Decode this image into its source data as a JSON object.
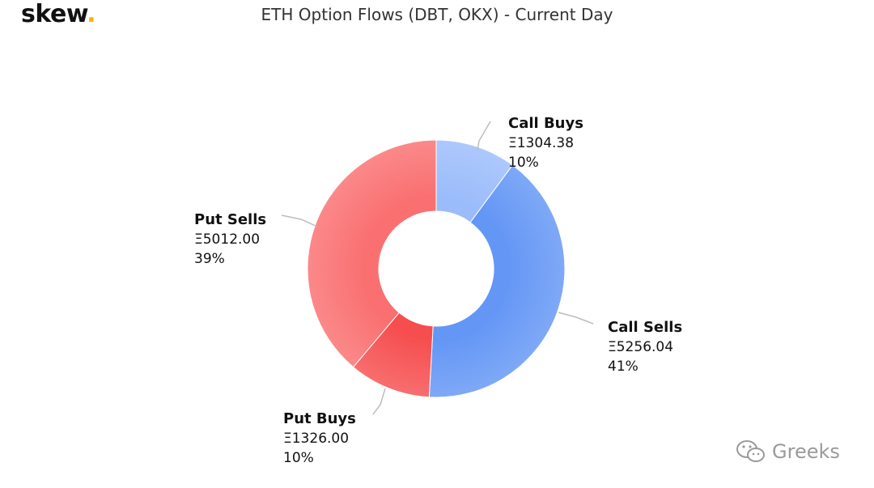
{
  "header": {
    "brand": "skew",
    "brand_dot": ".",
    "title": "ETH Option Flows (DBT, OKX) - Current Day"
  },
  "watermark": {
    "text": "Greeks",
    "icon": "wechat-icon"
  },
  "colors": {
    "call_buys": "#9bbcfb",
    "call_sells": "#6396f5",
    "put_buys": "#f64e4f",
    "put_sells": "#fa6f70"
  },
  "chart_data": {
    "type": "pie",
    "donut": true,
    "title": "ETH Option Flows (DBT, OKX) - Current Day",
    "currency_symbol": "Ξ",
    "slices": [
      {
        "name": "Call Buys",
        "value": 1304.38,
        "value_label": "Ξ1304.38",
        "percent_label": "10%",
        "color": "#9bbcfb"
      },
      {
        "name": "Call Sells",
        "value": 5256.04,
        "value_label": "Ξ5256.04",
        "percent_label": "41%",
        "color": "#6396f5"
      },
      {
        "name": "Put Buys",
        "value": 1326.0,
        "value_label": "Ξ1326.00",
        "percent_label": "10%",
        "color": "#f64e4f"
      },
      {
        "name": "Put Sells",
        "value": 5012.0,
        "value_label": "Ξ5012.00",
        "percent_label": "39%",
        "color": "#fa6f70"
      }
    ]
  }
}
